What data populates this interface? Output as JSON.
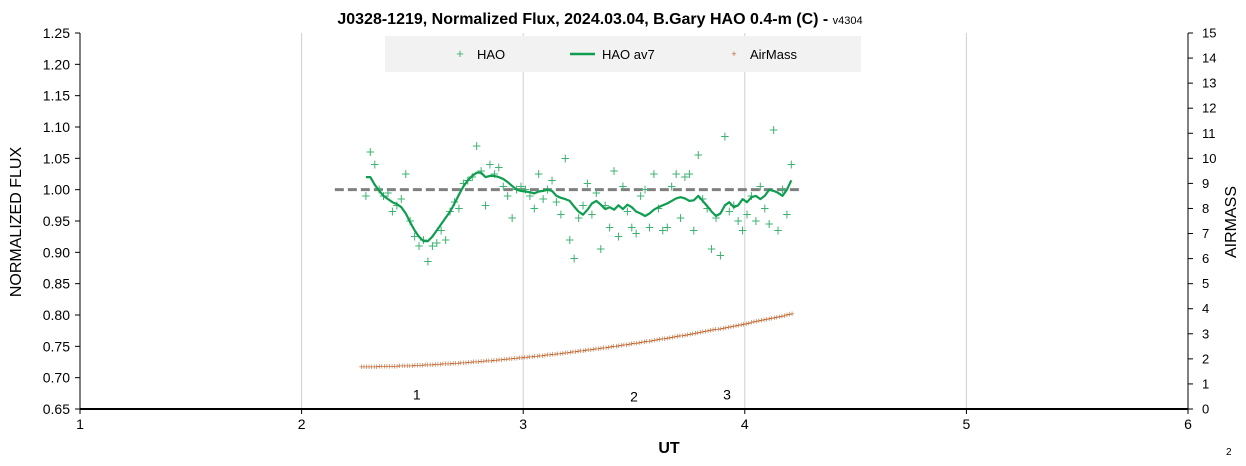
{
  "chart_data": {
    "type": "scatter",
    "title": "J0328-1219, Normalized Flux, 2024.03.04, B.Gary HAO 0.4-m (C) - ",
    "title_version": "v4304",
    "xlabel": "UT",
    "ylabel": "NORMALIZED FLUX",
    "y2label": "AIRMASS",
    "xlim": [
      1,
      6
    ],
    "ylim": [
      0.65,
      1.25
    ],
    "y2lim": [
      0,
      15
    ],
    "x_ticks": [
      1,
      2,
      3,
      4,
      5,
      6
    ],
    "y_ticks": [
      "0.65",
      "0.70",
      "0.75",
      "0.80",
      "0.85",
      "0.90",
      "0.95",
      "1.00",
      "1.05",
      "1.10",
      "1.15",
      "1.20",
      "1.25"
    ],
    "y2_ticks": [
      0,
      1,
      2,
      3,
      4,
      5,
      6,
      7,
      8,
      9,
      10,
      11,
      12,
      13,
      14,
      15
    ],
    "grid": "vertical",
    "legend_position": "top",
    "colors": {
      "hao": "#3cb371",
      "hao_av7": "#0f9d50",
      "airmass": "#c0642c",
      "reference": "#808080",
      "grid": "#cfcfcf",
      "legend_bg": "#f2f2f2"
    },
    "series": [
      {
        "name": "HAO",
        "kind": "points",
        "x": [
          2.29,
          2.31,
          2.33,
          2.35,
          2.37,
          2.39,
          2.41,
          2.43,
          2.45,
          2.47,
          2.49,
          2.51,
          2.53,
          2.55,
          2.57,
          2.59,
          2.61,
          2.63,
          2.65,
          2.67,
          2.69,
          2.71,
          2.73,
          2.75,
          2.77,
          2.79,
          2.81,
          2.83,
          2.85,
          2.87,
          2.89,
          2.91,
          2.93,
          2.95,
          2.97,
          2.99,
          3.01,
          3.03,
          3.05,
          3.07,
          3.09,
          3.11,
          3.13,
          3.15,
          3.17,
          3.19,
          3.21,
          3.23,
          3.25,
          3.27,
          3.29,
          3.31,
          3.33,
          3.35,
          3.37,
          3.39,
          3.41,
          3.43,
          3.45,
          3.47,
          3.49,
          3.51,
          3.53,
          3.55,
          3.57,
          3.59,
          3.61,
          3.63,
          3.65,
          3.67,
          3.69,
          3.71,
          3.73,
          3.75,
          3.77,
          3.79,
          3.81,
          3.83,
          3.85,
          3.87,
          3.89,
          3.91,
          3.93,
          3.95,
          3.97,
          3.99,
          4.01,
          4.03,
          4.05,
          4.07,
          4.09,
          4.11,
          4.13,
          4.15,
          4.17,
          4.19,
          4.21
        ],
        "y": [
          0.99,
          1.06,
          1.04,
          1.0,
          0.99,
          0.995,
          0.965,
          0.975,
          0.985,
          1.025,
          0.95,
          0.925,
          0.91,
          0.92,
          0.885,
          0.91,
          0.915,
          0.935,
          0.92,
          0.965,
          0.98,
          0.97,
          1.01,
          1.015,
          1.02,
          1.07,
          1.03,
          0.975,
          1.04,
          1.025,
          1.035,
          1.005,
          0.99,
          0.955,
          1.0,
          1.005,
          1.0,
          0.99,
          0.97,
          1.025,
          0.985,
          1.0,
          1.015,
          0.98,
          0.96,
          1.05,
          0.92,
          0.89,
          0.955,
          0.975,
          1.01,
          0.96,
          0.995,
          0.905,
          0.975,
          0.94,
          1.03,
          0.925,
          1.005,
          0.965,
          0.94,
          0.93,
          0.99,
          1.0,
          0.94,
          1.025,
          0.97,
          0.935,
          0.94,
          1.005,
          1.025,
          0.955,
          1.02,
          1.025,
          0.935,
          1.055,
          0.985,
          0.97,
          0.905,
          0.955,
          0.895,
          1.085,
          0.965,
          0.975,
          0.95,
          0.935,
          0.96,
          0.99,
          0.95,
          1.005,
          0.97,
          0.945,
          1.095,
          0.935,
          1.0,
          0.96,
          1.04
        ]
      },
      {
        "name": "HAO av7",
        "kind": "line",
        "x": [
          2.29,
          2.31,
          2.33,
          2.35,
          2.37,
          2.39,
          2.41,
          2.43,
          2.45,
          2.47,
          2.49,
          2.51,
          2.53,
          2.55,
          2.57,
          2.59,
          2.61,
          2.63,
          2.65,
          2.67,
          2.69,
          2.71,
          2.73,
          2.75,
          2.77,
          2.79,
          2.81,
          2.83,
          2.85,
          2.87,
          2.89,
          2.91,
          2.93,
          2.95,
          2.97,
          2.99,
          3.01,
          3.03,
          3.05,
          3.07,
          3.09,
          3.11,
          3.13,
          3.15,
          3.17,
          3.19,
          3.21,
          3.23,
          3.25,
          3.27,
          3.29,
          3.31,
          3.33,
          3.35,
          3.37,
          3.39,
          3.41,
          3.43,
          3.45,
          3.47,
          3.49,
          3.51,
          3.53,
          3.55,
          3.57,
          3.59,
          3.61,
          3.63,
          3.65,
          3.67,
          3.69,
          3.71,
          3.73,
          3.75,
          3.77,
          3.79,
          3.81,
          3.83,
          3.85,
          3.87,
          3.89,
          3.91,
          3.93,
          3.95,
          3.97,
          3.99,
          4.01,
          4.03,
          4.05,
          4.07,
          4.09,
          4.11,
          4.13,
          4.15,
          4.17,
          4.19,
          4.21
        ],
        "y": [
          1.02,
          1.02,
          1.008,
          0.998,
          0.99,
          0.985,
          0.98,
          0.977,
          0.972,
          0.962,
          0.948,
          0.935,
          0.925,
          0.918,
          0.918,
          0.925,
          0.935,
          0.945,
          0.955,
          0.965,
          0.978,
          0.992,
          1.005,
          1.015,
          1.022,
          1.027,
          1.027,
          1.02,
          1.022,
          1.022,
          1.02,
          1.017,
          1.012,
          1.006,
          1.0,
          0.998,
          0.997,
          0.996,
          0.994,
          0.997,
          0.998,
          1.0,
          0.998,
          0.99,
          0.987,
          0.985,
          0.982,
          0.973,
          0.965,
          0.96,
          0.968,
          0.978,
          0.982,
          0.976,
          0.969,
          0.972,
          0.968,
          0.975,
          0.969,
          0.976,
          0.972,
          0.965,
          0.962,
          0.958,
          0.962,
          0.968,
          0.972,
          0.975,
          0.978,
          0.982,
          0.986,
          0.988,
          0.986,
          0.982,
          0.983,
          0.99,
          0.982,
          0.974,
          0.965,
          0.958,
          0.962,
          0.975,
          0.98,
          0.972,
          0.975,
          0.985,
          0.98,
          0.988,
          0.99,
          0.985,
          0.99,
          1.0,
          0.998,
          0.995,
          0.99,
          1.0,
          1.015
        ]
      },
      {
        "name": "AirMass",
        "kind": "points",
        "axis": "right",
        "x_start": 2.27,
        "x_end": 4.21,
        "x_step": 0.0115,
        "y_start": 1.7,
        "y_end": 3.8,
        "y_curve": 1.8
      },
      {
        "kind": "reference-line",
        "x": [
          2.15,
          4.25
        ],
        "y": [
          1.0,
          1.0
        ]
      }
    ],
    "annotations": [
      {
        "text": "1",
        "x": 2.52,
        "y": 0.673
      },
      {
        "text": "2",
        "x": 3.5,
        "y": 0.67
      },
      {
        "text": "3",
        "x": 3.92,
        "y": 0.673
      }
    ],
    "corner_note": "2"
  }
}
